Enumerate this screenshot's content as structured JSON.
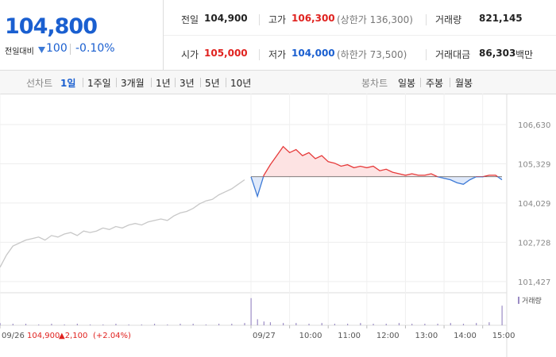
{
  "header": {
    "price": "104,800",
    "change_label": "전일대비",
    "change": "100",
    "change_rate": "-0.10%",
    "stats": [
      {
        "label": "전일",
        "value": "104,900",
        "color": "#222"
      },
      {
        "label": "고가",
        "value": "106,300",
        "note": "(상한가 136,300)",
        "color": "#e0221f"
      },
      {
        "label": "거래량",
        "value": "821,145",
        "color": "#222"
      },
      {
        "label": "시가",
        "value": "105,000",
        "color": "#e0221f"
      },
      {
        "label": "저가",
        "value": "104,000",
        "note": "(하한가 73,500)",
        "color": "#1a5fd0"
      },
      {
        "label": "거래대금",
        "value": "86,303",
        "unit": "백만",
        "color": "#222"
      }
    ]
  },
  "tabs": {
    "line_label": "선차트",
    "line": [
      "1일",
      "1주일",
      "3개월",
      "1년",
      "3년",
      "5년",
      "10년"
    ],
    "selected": 0,
    "candle_label": "봉차트",
    "candle": [
      "일봉",
      "주봉",
      "월봉"
    ]
  },
  "chart_data": {
    "type": "line",
    "series": [
      {
        "color": "#c8c8c8",
        "x": [
          0,
          10,
          20,
          30,
          40,
          50,
          60,
          70,
          80,
          90,
          100,
          110,
          120,
          130,
          140,
          150,
          160,
          170,
          180,
          190,
          200,
          210,
          220,
          230,
          240,
          250,
          260,
          270,
          280,
          290,
          300,
          310,
          320,
          330,
          340,
          350,
          360,
          370,
          380
        ],
        "values": [
          101900,
          102300,
          102600,
          102700,
          102800,
          102850,
          102900,
          102800,
          102950,
          102900,
          103000,
          103050,
          102950,
          103100,
          103050,
          103100,
          103200,
          103150,
          103250,
          103200,
          103300,
          103350,
          103300,
          103400,
          103450,
          103500,
          103450,
          103600,
          103700,
          103750,
          103850,
          104000,
          104100,
          104150,
          104300,
          104400,
          104500,
          104650,
          104800
        ]
      },
      {
        "color_up": "#e63a3a",
        "color_down": "#3d7ad6",
        "x": [
          390,
          400,
          410,
          420,
          430,
          440,
          450,
          460,
          470,
          480,
          490,
          500,
          510,
          520,
          530,
          540,
          550,
          560,
          570,
          580,
          590,
          600,
          610,
          620,
          630,
          640,
          650,
          660,
          670,
          680,
          690,
          700,
          710,
          720,
          730,
          740,
          750,
          760,
          770,
          780
        ],
        "values": [
          104900,
          104250,
          104950,
          105300,
          105600,
          105900,
          105700,
          105800,
          105600,
          105700,
          105500,
          105600,
          105400,
          105350,
          105250,
          105300,
          105200,
          105250,
          105200,
          105250,
          105100,
          105150,
          105050,
          105000,
          104950,
          105000,
          104950,
          104950,
          105000,
          104900,
          104850,
          104800,
          104700,
          104650,
          104800,
          104900,
          104900,
          104950,
          104950,
          104800
        ]
      }
    ],
    "baseline": 104900,
    "xlim": [
      0,
      780
    ],
    "xticks": [
      {
        "value": 0,
        "label": "09/26"
      },
      {
        "value": 390,
        "label": "09/27"
      },
      {
        "value": 450,
        "label": "10:00"
      },
      {
        "value": 510,
        "label": "11:00"
      },
      {
        "value": 570,
        "label": "12:00"
      },
      {
        "value": 630,
        "label": "13:00"
      },
      {
        "value": 690,
        "label": "14:00"
      },
      {
        "value": 750,
        "label": "15:00"
      }
    ],
    "ylim": [
      101160,
      107550
    ],
    "yticks": [
      {
        "value": 101427,
        "label": "101,427"
      },
      {
        "value": 102728,
        "label": "102,728"
      },
      {
        "value": 104029,
        "label": "104,029"
      },
      {
        "value": 105329,
        "label": "105,329"
      },
      {
        "value": 106630,
        "label": "106,630"
      }
    ],
    "grid": true,
    "volume": {
      "label": "거래량",
      "color": "#9b8cc4",
      "ylim": [
        0,
        40
      ],
      "x": [
        0,
        20,
        40,
        60,
        80,
        100,
        120,
        140,
        160,
        180,
        200,
        220,
        240,
        260,
        280,
        300,
        320,
        340,
        360,
        380,
        390,
        400,
        410,
        420,
        440,
        460,
        480,
        500,
        520,
        540,
        560,
        580,
        600,
        620,
        640,
        660,
        680,
        700,
        720,
        740,
        760,
        780
      ],
      "values": [
        3,
        2,
        2,
        1,
        2,
        1,
        2,
        1,
        1,
        2,
        1,
        1,
        2,
        1,
        2,
        2,
        1,
        2,
        2,
        3,
        36,
        8,
        5,
        4,
        3,
        3,
        2,
        3,
        2,
        2,
        3,
        2,
        2,
        3,
        2,
        2,
        2,
        3,
        2,
        3,
        4,
        26
      ]
    },
    "prev_summary": {
      "close": "104,900",
      "change": "▲2,100",
      "rate": "(+2.04%)"
    }
  }
}
